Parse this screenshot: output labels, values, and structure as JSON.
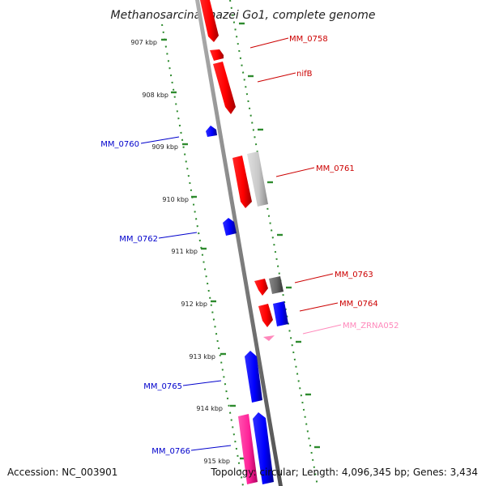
{
  "title": "Methanosarcina mazei Go1, complete genome",
  "footer": {
    "accession": "Accession: NC_003901",
    "topology": "Topology: circular; Length: 4,096,345 bp; Genes: 3,434"
  },
  "colors": {
    "forward_gene": "#ff0000",
    "reverse_gene": "#0000ff",
    "rna_gene": "#ff88bb",
    "pseudogene": "#c8c8c8",
    "dark_gene": "#666666",
    "pink_gene": "#ff2299",
    "tick_marks": "#2e8b2e",
    "backbone": "#808080"
  },
  "ticks": {
    "labels": [
      "907 kbp",
      "908 kbp",
      "909 kbp",
      "910 kbp",
      "911 kbp",
      "912 kbp",
      "913 kbp",
      "914 kbp",
      "915 kbp"
    ]
  },
  "genes": [
    {
      "id": "MM_0758",
      "label": "MM_0758",
      "strand": "+",
      "color": "#ff0000"
    },
    {
      "id": "nifB",
      "label": "nifB",
      "strand": "+",
      "color": "#ff0000"
    },
    {
      "id": "MM_0760",
      "label": "MM_0760",
      "strand": "-",
      "color": "#0000ff"
    },
    {
      "id": "MM_0761",
      "label": "MM_0761",
      "strand": "+",
      "color": "#ff0000"
    },
    {
      "id": "MM_0762",
      "label": "MM_0762",
      "strand": "-",
      "color": "#0000ff"
    },
    {
      "id": "MM_0763",
      "label": "MM_0763",
      "strand": "+",
      "color": "#ff0000"
    },
    {
      "id": "MM_0764",
      "label": "MM_0764",
      "strand": "+",
      "color": "#ff0000"
    },
    {
      "id": "MM_ZRNA052",
      "label": "MM_ZRNA052",
      "strand": "+",
      "color": "#ff88bb"
    },
    {
      "id": "MM_0765",
      "label": "MM_0765",
      "strand": "-",
      "color": "#0000ff"
    },
    {
      "id": "MM_0766",
      "label": "MM_0766",
      "strand": "-",
      "color": "#0000ff"
    }
  ]
}
